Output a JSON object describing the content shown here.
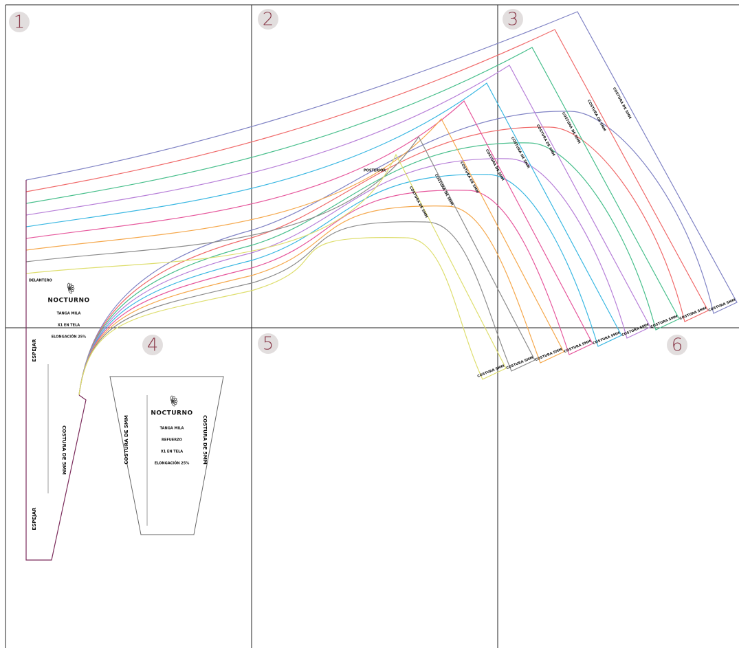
{
  "pages": [
    "1",
    "2",
    "3",
    "4",
    "5",
    "6"
  ],
  "front": {
    "title": "DELANTERO",
    "brand": "NOCTURNO",
    "lines": [
      "TANGA MILA",
      "X1 EN TELA",
      "ELONGACIÓN 25%"
    ],
    "fold_labels": [
      "ESPEJAR",
      "ESPEJAR"
    ],
    "seam_label": "COSTURA DE 5MM"
  },
  "back": {
    "title": "POSTERIOR",
    "sizes": [
      {
        "seam": "COSTURA DE 5MM",
        "hem": "COSTURA 5MM"
      },
      {
        "seam": "COSTURA DE 5MM",
        "hem": "COSTURA 5MM"
      },
      {
        "seam": "COSTURA DE 5MM",
        "hem": "COSTURA 5MM"
      },
      {
        "seam": "COSTURA DE 5MM",
        "hem": "COSTURA 5MM"
      },
      {
        "seam": "COSTURA DE 5MM",
        "hem": "COSTURA 5MM"
      },
      {
        "seam": "COSTURA DE 5MM",
        "hem": "COSTURA 5MM"
      },
      {
        "seam": "COSTURA DE 5MM",
        "hem": "COSTURA 5MM"
      },
      {
        "seam": "COSTURA DE 5MM",
        "hem": "COSTURA 5MM"
      },
      {
        "seam": "COSTURA DE 5MM",
        "hem": "COSTURA 5MM"
      }
    ]
  },
  "liner": {
    "brand": "NOCTURNO",
    "lines": [
      "TANGA MILA",
      "REFUERZO",
      "X1 EN TELA",
      "ELONGACIÓN 25%"
    ],
    "seam_labels": [
      "COSTURA DE 5MM",
      "COSTURA DE 5MM"
    ]
  }
}
